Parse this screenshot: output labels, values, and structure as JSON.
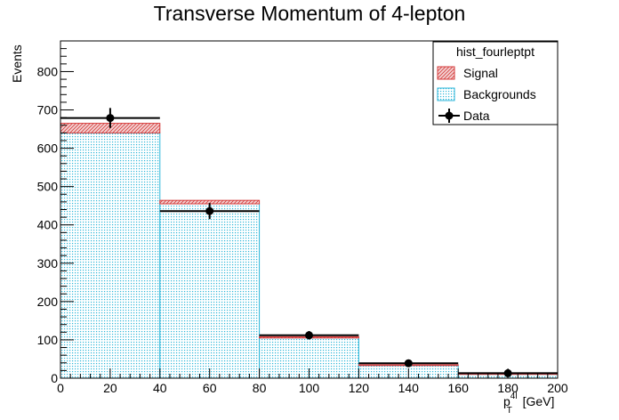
{
  "chart_data": {
    "type": "bar",
    "title": "Transverse Momentum of 4-lepton",
    "ylabel": "Events",
    "xlabel": {
      "base": "p",
      "sub": "T",
      "sup": "4l",
      "unit": " [GeV]"
    },
    "xlim": [
      0,
      200
    ],
    "ylim": [
      0,
      880
    ],
    "x_ticks": [
      0,
      20,
      40,
      60,
      80,
      100,
      120,
      140,
      160,
      180,
      200
    ],
    "y_ticks": [
      0,
      100,
      200,
      300,
      400,
      500,
      600,
      700,
      800
    ],
    "bin_edges": [
      0,
      40,
      80,
      120,
      160,
      200
    ],
    "series": [
      {
        "name": "Backgrounds",
        "kind": "stack",
        "values": [
          640,
          455,
          105,
          33,
          10
        ],
        "fill": "#9ee6f5",
        "stroke": "#2bb6d9"
      },
      {
        "name": "Signal",
        "kind": "stack",
        "values": [
          25,
          9,
          3,
          2,
          1
        ],
        "fill": "#e8a3a3",
        "stroke": "#d53a3a"
      },
      {
        "name": "Data",
        "kind": "points",
        "bin_centers": [
          20,
          60,
          100,
          140,
          180
        ],
        "values": [
          679,
          436,
          112,
          39,
          13
        ],
        "errors": [
          26,
          21,
          11,
          6,
          4
        ],
        "color": "#000000"
      }
    ],
    "legend": {
      "title": "hist_fourleptpt",
      "position": "top-right",
      "entries": [
        "Signal",
        "Backgrounds",
        "Data"
      ]
    },
    "grid": false
  }
}
